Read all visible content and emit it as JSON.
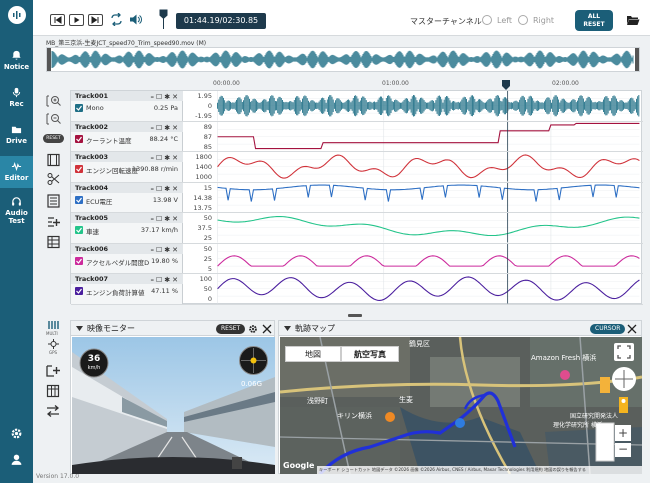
{
  "sidebar": {
    "items": [
      {
        "label": "Notice",
        "icon": "bell-icon"
      },
      {
        "label": "Rec",
        "icon": "microphone-icon"
      },
      {
        "label": "Drive",
        "icon": "folder-icon"
      },
      {
        "label": "Editor",
        "icon": "waveform-icon"
      },
      {
        "label": "Audio Test",
        "icon": "headphones-icon"
      }
    ],
    "bottom_icons": [
      "gear-icon",
      "user-icon"
    ],
    "version": "Version 17.0.0"
  },
  "toolbar": {
    "time": "01:44.19/02:30.85",
    "master_label": "マスターチャンネル",
    "left_label": "Left",
    "right_label": "Right",
    "all_reset_line1": "ALL",
    "all_reset_line2": "RESET"
  },
  "file": {
    "name": "MB_第三京浜-生麦JCT_speed70_Trim_speed90.mov (M)"
  },
  "timeline": {
    "ticks": [
      "00:00.00",
      "01:00.00",
      "02:00.00"
    ]
  },
  "tools": {
    "reset_label": "RESET",
    "multi_label": "MULTI",
    "gps_label": "GPS"
  },
  "tracks": [
    {
      "id": "Track001",
      "name": "Mono",
      "value": "0.25 Pa",
      "color": "#1f6f86",
      "scale": [
        "1.95",
        "0",
        "-1.95"
      ]
    },
    {
      "id": "Track002",
      "name": "クーラント温度",
      "value": "88.24 °C",
      "color": "#a4123f",
      "scale": [
        "89",
        "87",
        "85"
      ]
    },
    {
      "id": "Track003",
      "name": "エンジン回転速度",
      "value": "1390.88 r/min",
      "color": "#d0323a",
      "scale": [
        "1800",
        "1400",
        "1000"
      ]
    },
    {
      "id": "Track004",
      "name": "ECU電圧",
      "value": "13.98 V",
      "color": "#2d6fc4",
      "scale": [
        "15",
        "14.38",
        "13.75"
      ]
    },
    {
      "id": "Track005",
      "name": "車速",
      "value": "37.17 km/h",
      "color": "#23c48a",
      "scale": [
        "50",
        "37.5",
        "25"
      ]
    },
    {
      "id": "Track006",
      "name": "アクセルペダル開度D",
      "value": "19.80 %",
      "color": "#cc2a9c",
      "scale": [
        "50",
        "25",
        "5"
      ]
    },
    {
      "id": "Track007",
      "name": "エンジン負荷計算値",
      "value": "47.11 %",
      "color": "#4a1e9e",
      "scale": [
        "100",
        "50",
        "0"
      ]
    }
  ],
  "video": {
    "title": "映像モニター",
    "reset_label": "RESET",
    "speed": "36",
    "speed_unit": "km/h",
    "g_value": "0.06G"
  },
  "map": {
    "title": "軌跡マップ",
    "cursor_label": "CURSOR",
    "tab_map": "地図",
    "tab_satellite": "航空写真",
    "labels": [
      "Amazon Fresh 横浜",
      "浅野町",
      "キリン横浜",
      "国立研究開発法人",
      "理化学研究所 横浜",
      "生麦",
      "鶴見区"
    ],
    "attribution": "キーボード ショートカット   地図データ ©2026 画像 ©2026 Airbus, CNES / Airbus, Maxar Technologies   利用規約   地図の誤りを報告する",
    "google": "Google"
  }
}
